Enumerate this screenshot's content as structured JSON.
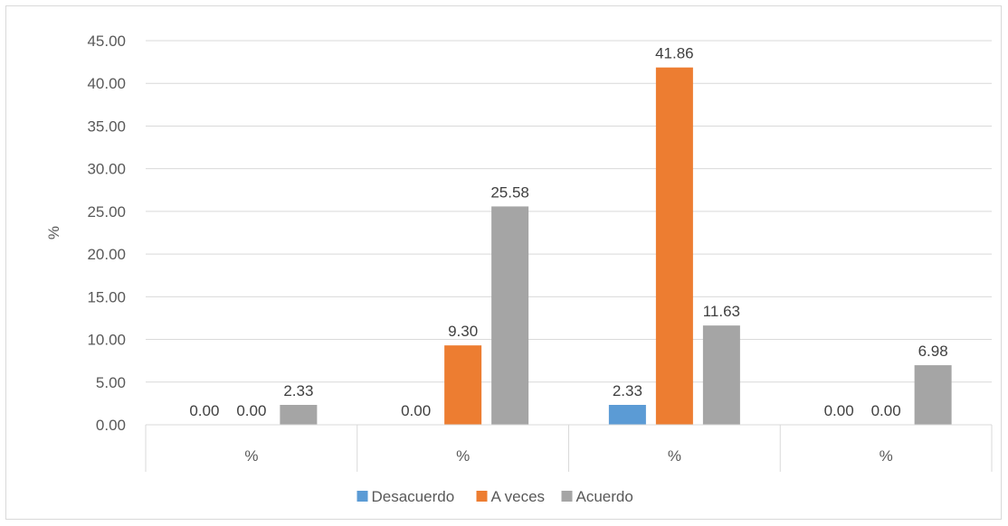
{
  "chart_data": {
    "type": "bar",
    "categories": [
      "%",
      "%",
      "%",
      "%"
    ],
    "series": [
      {
        "name": "Desacuerdo",
        "color": "#5b9bd5",
        "values": [
          0.0,
          0.0,
          2.33,
          0.0
        ]
      },
      {
        "name": "A veces",
        "color": "#ed7d31",
        "values": [
          0.0,
          9.3,
          41.86,
          0.0
        ]
      },
      {
        "name": "Acuerdo",
        "color": "#a5a5a5",
        "values": [
          2.33,
          25.58,
          11.63,
          6.98
        ]
      }
    ],
    "data_labels": [
      [
        "0.00",
        "0.00",
        "2.33",
        "0.00"
      ],
      [
        "0.00",
        "9.30",
        "41.86",
        "0.00"
      ],
      [
        "2.33",
        "25.58",
        "11.63",
        "6.98"
      ]
    ],
    "title": "",
    "xlabel": "",
    "ylabel": "%",
    "ylim": [
      0,
      45
    ],
    "yticks": [
      "0.00",
      "5.00",
      "10.00",
      "15.00",
      "20.00",
      "25.00",
      "30.00",
      "35.00",
      "40.00",
      "45.00"
    ],
    "grid": true,
    "legend_position": "bottom"
  }
}
